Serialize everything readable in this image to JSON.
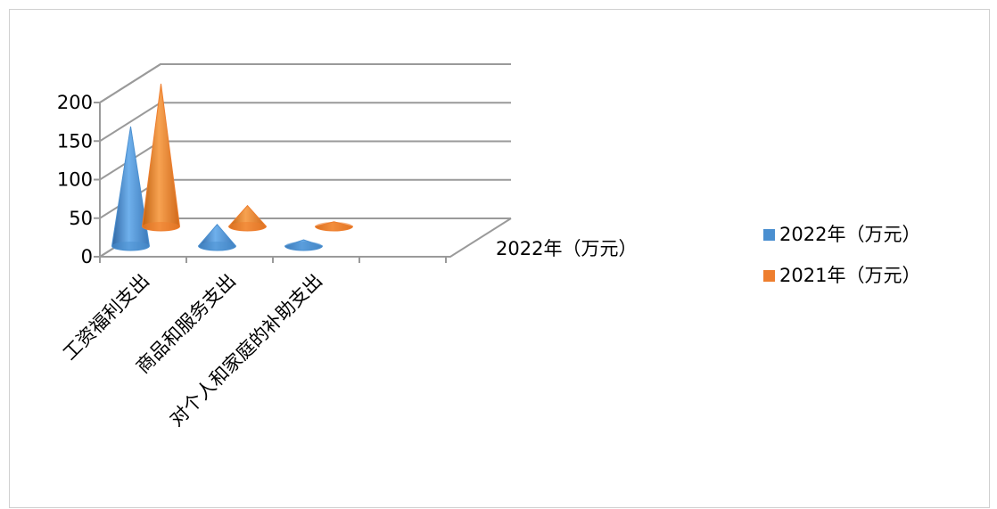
{
  "chart_data": {
    "type": "bar",
    "style": "3d-cone",
    "categories": [
      "工资福利支出",
      "商品和服务支出",
      "对个人和家庭的补助支出"
    ],
    "series": [
      {
        "name": "2022年（万元）",
        "values": [
          155,
          28,
          8
        ],
        "color": "#4a8fd0"
      },
      {
        "name": "2021年（万元）",
        "values": [
          185,
          27,
          6
        ],
        "color": "#ee7e2e"
      }
    ],
    "depth_label": "2022年（万元）",
    "yticks": [
      "0",
      "50",
      "100",
      "150",
      "200"
    ],
    "ylim": [
      0,
      200
    ],
    "legend_position": "right",
    "grid": true
  }
}
